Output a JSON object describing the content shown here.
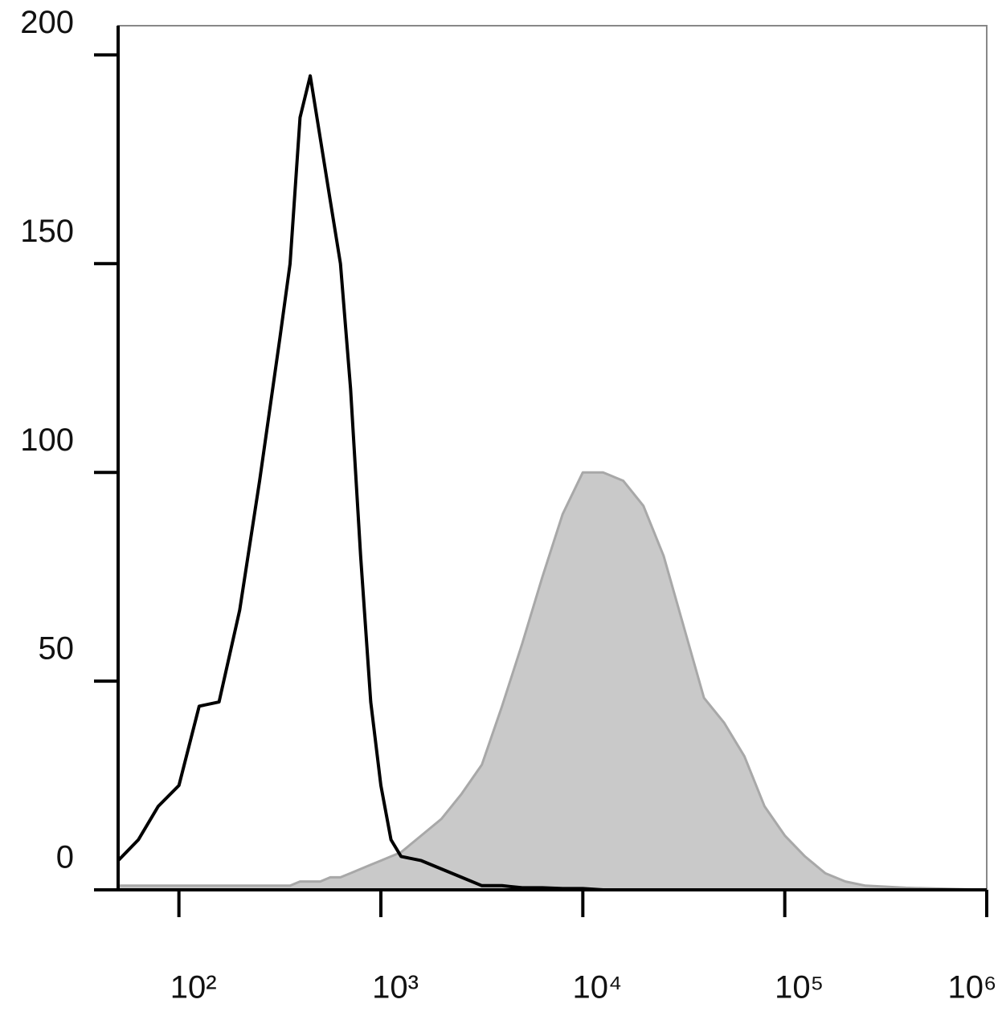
{
  "chart_data": {
    "type": "histogram-overlay",
    "xscale": "log",
    "xlim": [
      50,
      1000000
    ],
    "ylim": [
      0,
      207
    ],
    "xticks": [
      {
        "value": 100,
        "label": "10²"
      },
      {
        "value": 1000,
        "label": "10³"
      },
      {
        "value": 10000,
        "label": "10⁴"
      },
      {
        "value": 100000,
        "label": "10⁵"
      },
      {
        "value": 1000000,
        "label": "10⁶"
      }
    ],
    "yticks": [
      0,
      50,
      100,
      150,
      200
    ],
    "x": [
      50,
      63,
      79,
      100,
      126,
      158,
      200,
      251,
      316,
      355,
      398,
      447,
      501,
      562,
      631,
      708,
      794,
      891,
      1000,
      1122,
      1259,
      1585,
      1995,
      2512,
      3162,
      3981,
      5012,
      6310,
      7943,
      10000,
      12589,
      15849,
      19953,
      25119,
      31623,
      39811,
      50119,
      63096,
      79433,
      100000,
      125893,
      158489,
      199526,
      251189,
      398107,
      1000000
    ],
    "series": [
      {
        "color": "#a8a8a8",
        "fill": "#c9c9c9",
        "values": [
          1,
          1,
          1,
          1,
          1,
          1,
          1,
          1,
          1,
          1,
          2,
          2,
          2,
          3,
          3,
          4,
          5,
          6,
          7,
          8,
          9,
          13,
          17,
          23,
          30,
          44,
          59,
          75,
          90,
          100,
          100,
          98,
          92,
          80,
          63,
          46,
          40,
          32,
          20,
          13,
          8,
          4,
          2,
          1,
          0.5,
          0
        ]
      },
      {
        "color": "#000000",
        "values": [
          7,
          12,
          20,
          25,
          44,
          45,
          67,
          98,
          132,
          150,
          185,
          195,
          180,
          165,
          150,
          120,
          80,
          45,
          25,
          12,
          8,
          7,
          5,
          3,
          1,
          1,
          0.5,
          0.5,
          0.3,
          0.3,
          0,
          0,
          0,
          0,
          0,
          0,
          0,
          0,
          0,
          0,
          0,
          0,
          0,
          0,
          0,
          0
        ]
      }
    ]
  }
}
